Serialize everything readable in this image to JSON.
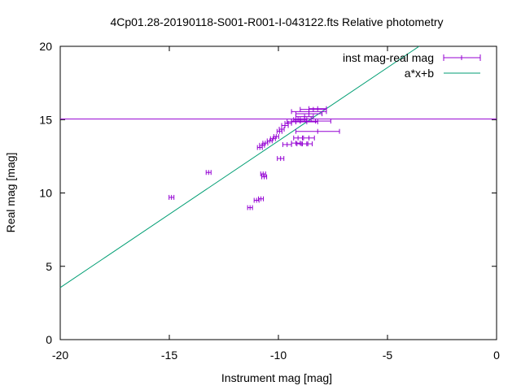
{
  "chart_data": {
    "type": "scatter",
    "title": "4Cp01.28-20190118-S001-R001-I-043122.fts Relative photometry",
    "xlabel": "Instrument mag [mag]",
    "ylabel": "Real mag [mag]",
    "xlim": [
      -20,
      0
    ],
    "ylim": [
      0,
      20
    ],
    "x_ticks": [
      -20,
      -15,
      -10,
      -5,
      0
    ],
    "y_ticks": [
      0,
      5,
      10,
      15,
      20
    ],
    "x_tick_labels": [
      "-20",
      "-15",
      "-10",
      "-5",
      "0"
    ],
    "y_tick_labels": [
      "0",
      "5",
      "10",
      "15",
      "20"
    ],
    "grid": false,
    "legend_position": "top-right",
    "colors": {
      "points": "#9400d3",
      "fit": "#009e73",
      "hline": "#9400d3"
    },
    "horizontal_line": {
      "y": 15.05
    },
    "series": [
      {
        "name": "inst mag-real mag",
        "style": "errorbars",
        "points": [
          {
            "x": -14.9,
            "y": 9.7,
            "xerr": 0.05
          },
          {
            "x": -13.2,
            "y": 11.4,
            "xerr": 0.05
          },
          {
            "x": -11.3,
            "y": 9.0,
            "xerr": 0.05
          },
          {
            "x": -11.0,
            "y": 9.5,
            "xerr": 0.1
          },
          {
            "x": -10.8,
            "y": 9.6,
            "xerr": 0.1
          },
          {
            "x": -10.7,
            "y": 11.3,
            "xerr": 0.1
          },
          {
            "x": -10.65,
            "y": 11.1,
            "xerr": 0.1
          },
          {
            "x": -10.85,
            "y": 13.1,
            "xerr": 0.05
          },
          {
            "x": -10.75,
            "y": 13.25,
            "xerr": 0.05
          },
          {
            "x": -10.6,
            "y": 13.4,
            "xerr": 0.05
          },
          {
            "x": -10.4,
            "y": 13.55,
            "xerr": 0.05
          },
          {
            "x": -10.25,
            "y": 13.7,
            "xerr": 0.1
          },
          {
            "x": -10.1,
            "y": 13.85,
            "xerr": 0.1
          },
          {
            "x": -9.95,
            "y": 14.2,
            "xerr": 0.1
          },
          {
            "x": -9.85,
            "y": 14.35,
            "xerr": 0.1
          },
          {
            "x": -9.7,
            "y": 14.6,
            "xerr": 0.15
          },
          {
            "x": -9.55,
            "y": 14.75,
            "xerr": 0.15
          },
          {
            "x": -9.4,
            "y": 14.85,
            "xerr": 0.2
          },
          {
            "x": -9.2,
            "y": 14.9,
            "xerr": 0.2
          },
          {
            "x": -9.0,
            "y": 15.0,
            "xerr": 0.3
          },
          {
            "x": -8.8,
            "y": 15.2,
            "xerr": 0.4
          },
          {
            "x": -8.6,
            "y": 15.4,
            "xerr": 0.6
          },
          {
            "x": -8.6,
            "y": 15.55,
            "xerr": 0.8
          },
          {
            "x": -8.4,
            "y": 15.7,
            "xerr": 0.6
          },
          {
            "x": -8.2,
            "y": 15.75,
            "xerr": 0.4
          },
          {
            "x": -8.7,
            "y": 14.85,
            "xerr": 0.5
          },
          {
            "x": -8.3,
            "y": 14.9,
            "xerr": 0.7
          },
          {
            "x": -8.2,
            "y": 14.2,
            "xerr": 1.0
          },
          {
            "x": -9.9,
            "y": 12.35,
            "xerr": 0.15
          },
          {
            "x": -9.6,
            "y": 13.3,
            "xerr": 0.2
          },
          {
            "x": -9.2,
            "y": 13.4,
            "xerr": 0.2
          },
          {
            "x": -8.9,
            "y": 13.35,
            "xerr": 0.25
          },
          {
            "x": -8.7,
            "y": 13.35,
            "xerr": 0.25
          },
          {
            "x": -9.1,
            "y": 13.75,
            "xerr": 0.2
          },
          {
            "x": -8.6,
            "y": 13.75,
            "xerr": 0.25
          },
          {
            "x": -8.8,
            "y": 15.05,
            "xerr": 0.3
          }
        ]
      },
      {
        "name": "a*x+b",
        "style": "line",
        "a": 1.0,
        "b": 23.55
      }
    ]
  }
}
